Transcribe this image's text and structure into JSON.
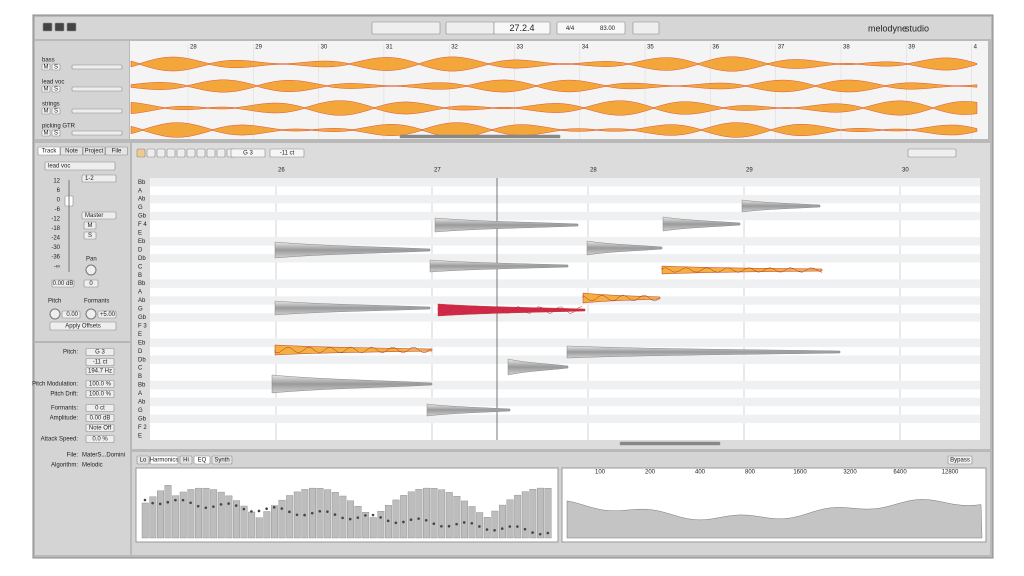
{
  "toolbar": {
    "position": "27.2.4",
    "meter": "4/4",
    "tempo": "83.00",
    "brand": "melodyne",
    "edition": "studio"
  },
  "overview": {
    "ruler": [
      "28",
      "29",
      "30",
      "31",
      "32",
      "33",
      "34",
      "35",
      "36",
      "37",
      "38",
      "39",
      "4"
    ],
    "tracks": [
      {
        "name": "bass"
      },
      {
        "name": "lead voc"
      },
      {
        "name": "strings"
      },
      {
        "name": "picking GTR"
      }
    ]
  },
  "buttons": {
    "mute": "M",
    "solo": "S"
  },
  "inspector": {
    "tabs": [
      "Track",
      "Note",
      "Project",
      "File"
    ],
    "track_name": "lead voc",
    "output": "1-2",
    "bus": "Master",
    "fader_scale": [
      "12",
      "6",
      "0",
      "-6",
      "-12",
      "-18",
      "-24",
      "-30",
      "-36",
      "-∞"
    ],
    "gain": "0.00 dB",
    "pan_label": "Pan",
    "pan": "0",
    "pitch_label": "Pitch",
    "formants_label": "Formants",
    "pitch": "0.00",
    "formants": "+5.00",
    "apply": "Apply Offsets"
  },
  "note": {
    "fields": [
      {
        "label": "Pitch:",
        "value": "G 3"
      },
      {
        "value": "-11 ct"
      },
      {
        "value": "194.7 Hz"
      },
      {
        "label": "Pitch Modulation:",
        "value": "100.0 %"
      },
      {
        "label": "Pitch Drift:",
        "value": "100.0 %"
      },
      {
        "label": "Formants:",
        "value": "0 ct"
      },
      {
        "label": "Amplitude:",
        "value": "0.00 dB"
      },
      {
        "value": "Note Off"
      },
      {
        "label": "Attack Speed:",
        "value": "0.0 %"
      }
    ],
    "file_label": "File:",
    "file": "MaterS...Domini",
    "algorithm_label": "Algorithm:",
    "algorithm": "Melodic"
  },
  "editor": {
    "pitch": "G 3",
    "cents": "-11 ct",
    "ruler": [
      "26",
      "27",
      "28",
      "29",
      "30"
    ],
    "pitch_names": [
      "Bb",
      "A",
      "Ab",
      "G",
      "Gb",
      "F 4",
      "E",
      "Eb",
      "D",
      "Db",
      "C",
      "B",
      "Bb",
      "A",
      "Ab",
      "G",
      "Gb",
      "F 3",
      "E",
      "Eb",
      "D",
      "Db",
      "C",
      "B",
      "Bb",
      "A",
      "Ab",
      "G",
      "Gb",
      "F 2",
      "E"
    ]
  },
  "spectrum": {
    "tabs": [
      "Lo",
      "Harmonics",
      "Hi",
      "EQ",
      "Synth"
    ],
    "bypass": "Bypass",
    "freq_labels": [
      "100",
      "200",
      "400",
      "800",
      "1600",
      "3200",
      "6400",
      "12800"
    ]
  }
}
